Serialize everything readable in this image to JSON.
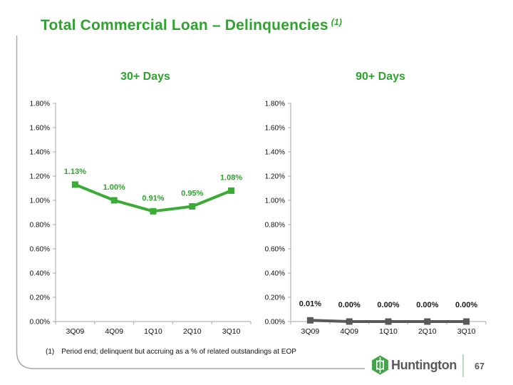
{
  "slide": {
    "title": "Total Commercial Loan – Delinquencies",
    "title_superscript": "(1)",
    "footnote_marker": "(1)",
    "footnote_text": "Period end; delinquent but accruing as a % of related outstandings at EOP",
    "logo_text": "Huntington",
    "page_number": "67"
  },
  "colors": {
    "title_green": "#2ea32e",
    "series_green": "#3aab35",
    "series_gray": "#595959",
    "label_black": "#1a1a1a",
    "axis_gray": "#b5b8b1",
    "border_gray": "#a9a9a9",
    "logo_green": "#3fa548",
    "logo_text_gray": "#58595b",
    "divider_light_green": "#bcdabc"
  },
  "chart_data": [
    {
      "type": "line",
      "title": "30+ Days",
      "categories": [
        "3Q09",
        "4Q09",
        "1Q10",
        "2Q10",
        "3Q10"
      ],
      "values": [
        1.13,
        1.0,
        0.91,
        0.95,
        1.08
      ],
      "point_labels": [
        "1.13%",
        "1.00%",
        "0.91%",
        "0.95%",
        "1.08%"
      ],
      "xlabel": "",
      "ylabel": "",
      "ylim": [
        0,
        1.8
      ],
      "ytick_step": 0.2,
      "ytick_labels": [
        "0.00%",
        "0.20%",
        "0.40%",
        "0.60%",
        "0.80%",
        "1.00%",
        "1.20%",
        "1.40%",
        "1.60%",
        "1.80%"
      ],
      "grid": false,
      "legend": false,
      "series_color_key": "series_green",
      "label_color_key": "title_green",
      "label_offset": 15
    },
    {
      "type": "line",
      "title": "90+ Days",
      "categories": [
        "3Q09",
        "4Q09",
        "1Q10",
        "2Q10",
        "3Q10"
      ],
      "values": [
        0.01,
        0.0,
        0.0,
        0.0,
        0.0
      ],
      "point_labels": [
        "0.01%",
        "0.00%",
        "0.00%",
        "0.00%",
        "0.00%"
      ],
      "xlabel": "",
      "ylabel": "",
      "ylim": [
        0,
        1.8
      ],
      "ytick_step": 0.2,
      "ytick_labels": [
        "0.00%",
        "0.20%",
        "0.40%",
        "0.60%",
        "0.80%",
        "1.00%",
        "1.20%",
        "1.40%",
        "1.60%",
        "1.80%"
      ],
      "grid": false,
      "legend": false,
      "series_color_key": "series_gray",
      "label_color_key": "label_black",
      "label_offset": 20
    }
  ]
}
